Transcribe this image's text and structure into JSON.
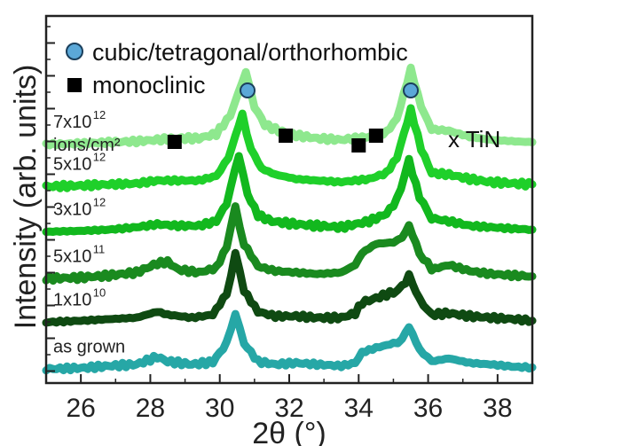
{
  "chart_data": {
    "type": "line",
    "xlabel": "2θ (°)",
    "ylabel": "Intensity (arb. units)",
    "xlim": [
      25,
      39
    ],
    "x_ticks": [
      "26",
      "28",
      "30",
      "32",
      "34",
      "36",
      "38"
    ],
    "x_tick_values": [
      26,
      28,
      30,
      32,
      34,
      36,
      38
    ],
    "y_ticks_labeled": false,
    "legend": [
      {
        "marker": "circle",
        "color": "#5ba8d8",
        "label": "cubic/tetragonal/orthorhombic"
      },
      {
        "marker": "square",
        "color": "#000000",
        "label": "monoclinic"
      }
    ],
    "tin_label": "x TiN",
    "series": [
      {
        "name": "as grown",
        "color": "#26a7a6",
        "offset": 0.0,
        "points": [
          [
            25,
            0.35
          ],
          [
            26,
            0.38
          ],
          [
            26.8,
            0.45
          ],
          [
            27.6,
            0.5
          ],
          [
            28.2,
            0.75
          ],
          [
            28.5,
            0.6
          ],
          [
            29.2,
            0.5
          ],
          [
            29.8,
            0.58
          ],
          [
            30.2,
            1.2
          ],
          [
            30.45,
            2.2
          ],
          [
            30.7,
            1.2
          ],
          [
            31.1,
            0.6
          ],
          [
            31.6,
            0.5
          ],
          [
            32.2,
            0.55
          ],
          [
            32.8,
            0.5
          ],
          [
            33.5,
            0.45
          ],
          [
            33.9,
            0.55
          ],
          [
            34.1,
            0.9
          ],
          [
            34.5,
            1.05
          ],
          [
            35.0,
            1.2
          ],
          [
            35.25,
            1.35
          ],
          [
            35.45,
            1.75
          ],
          [
            35.75,
            1.0
          ],
          [
            36.1,
            0.6
          ],
          [
            36.6,
            0.7
          ],
          [
            37.2,
            0.55
          ],
          [
            37.8,
            0.5
          ],
          [
            38.5,
            0.42
          ],
          [
            39,
            0.4
          ]
        ]
      },
      {
        "name": "1x10",
        "name_exponent": "10",
        "color": "#0f4a12",
        "offset": 1.55,
        "points": [
          [
            25,
            0.35
          ],
          [
            26,
            0.4
          ],
          [
            26.8,
            0.45
          ],
          [
            27.6,
            0.5
          ],
          [
            28.2,
            0.7
          ],
          [
            28.5,
            0.6
          ],
          [
            29.2,
            0.5
          ],
          [
            29.8,
            0.6
          ],
          [
            30.2,
            1.3
          ],
          [
            30.45,
            2.6
          ],
          [
            30.7,
            1.4
          ],
          [
            31.1,
            0.7
          ],
          [
            31.6,
            0.55
          ],
          [
            32.2,
            0.55
          ],
          [
            32.8,
            0.5
          ],
          [
            33.5,
            0.5
          ],
          [
            33.9,
            0.65
          ],
          [
            34.1,
            1.0
          ],
          [
            34.5,
            1.15
          ],
          [
            35.0,
            1.35
          ],
          [
            35.25,
            1.5
          ],
          [
            35.45,
            1.9
          ],
          [
            35.75,
            1.1
          ],
          [
            36.1,
            0.6
          ],
          [
            36.6,
            0.65
          ],
          [
            37.2,
            0.55
          ],
          [
            37.8,
            0.5
          ],
          [
            38.5,
            0.45
          ],
          [
            39,
            0.4
          ]
        ]
      },
      {
        "name": "5x10",
        "name_exponent": "11",
        "color": "#1a8a1f",
        "offset": 3.0,
        "points": [
          [
            25,
            0.35
          ],
          [
            26,
            0.38
          ],
          [
            26.8,
            0.45
          ],
          [
            27.6,
            0.55
          ],
          [
            28.2,
            0.85
          ],
          [
            28.5,
            0.9
          ],
          [
            28.8,
            0.65
          ],
          [
            29.4,
            0.55
          ],
          [
            29.9,
            0.7
          ],
          [
            30.2,
            1.4
          ],
          [
            30.45,
            2.7
          ],
          [
            30.7,
            1.5
          ],
          [
            31.1,
            0.75
          ],
          [
            31.6,
            0.6
          ],
          [
            32.2,
            0.55
          ],
          [
            32.8,
            0.5
          ],
          [
            33.5,
            0.55
          ],
          [
            33.9,
            0.8
          ],
          [
            34.1,
            1.2
          ],
          [
            34.5,
            1.5
          ],
          [
            35.0,
            1.55
          ],
          [
            35.25,
            1.7
          ],
          [
            35.45,
            2.1
          ],
          [
            35.75,
            1.2
          ],
          [
            36.1,
            0.65
          ],
          [
            36.6,
            0.8
          ],
          [
            37.2,
            0.6
          ],
          [
            37.8,
            0.5
          ],
          [
            38.5,
            0.45
          ],
          [
            39,
            0.42
          ]
        ]
      },
      {
        "name": "3x10",
        "name_exponent": "12",
        "color": "#12b81e",
        "offset": 4.55,
        "points": [
          [
            25,
            0.35
          ],
          [
            26,
            0.38
          ],
          [
            26.8,
            0.42
          ],
          [
            27.6,
            0.5
          ],
          [
            28.2,
            0.6
          ],
          [
            28.8,
            0.55
          ],
          [
            29.4,
            0.55
          ],
          [
            29.9,
            0.7
          ],
          [
            30.2,
            1.3
          ],
          [
            30.55,
            2.9
          ],
          [
            30.8,
            1.6
          ],
          [
            31.1,
            0.9
          ],
          [
            31.5,
            0.7
          ],
          [
            32.2,
            0.6
          ],
          [
            32.8,
            0.55
          ],
          [
            33.5,
            0.5
          ],
          [
            33.9,
            0.6
          ],
          [
            34.3,
            0.7
          ],
          [
            34.8,
            0.95
          ],
          [
            35.1,
            1.4
          ],
          [
            35.45,
            2.7
          ],
          [
            35.75,
            1.5
          ],
          [
            36.1,
            0.8
          ],
          [
            36.6,
            0.7
          ],
          [
            37.2,
            0.55
          ],
          [
            37.8,
            0.5
          ],
          [
            38.5,
            0.45
          ],
          [
            39,
            0.42
          ]
        ]
      },
      {
        "name": "5x10",
        "name_exponent": "12",
        "color": "#1fd02a",
        "offset": 6.05,
        "points": [
          [
            25,
            0.35
          ],
          [
            26,
            0.38
          ],
          [
            26.8,
            0.42
          ],
          [
            27.6,
            0.45
          ],
          [
            28.2,
            0.55
          ],
          [
            28.8,
            0.55
          ],
          [
            29.4,
            0.55
          ],
          [
            29.9,
            0.7
          ],
          [
            30.25,
            1.3
          ],
          [
            30.65,
            2.75
          ],
          [
            30.9,
            1.6
          ],
          [
            31.2,
            0.95
          ],
          [
            31.6,
            0.75
          ],
          [
            32.2,
            0.6
          ],
          [
            32.8,
            0.55
          ],
          [
            33.5,
            0.5
          ],
          [
            33.9,
            0.55
          ],
          [
            34.3,
            0.6
          ],
          [
            34.8,
            0.8
          ],
          [
            35.1,
            1.3
          ],
          [
            35.5,
            2.9
          ],
          [
            35.8,
            1.6
          ],
          [
            36.1,
            0.8
          ],
          [
            36.6,
            0.75
          ],
          [
            37.2,
            0.6
          ],
          [
            37.8,
            0.5
          ],
          [
            38.5,
            0.45
          ],
          [
            39,
            0.42
          ]
        ]
      },
      {
        "name": "7x10",
        "name_exponent": "12",
        "name_line2": "ions/cm²",
        "color": "#8ee88e",
        "offset": 7.45,
        "points": [
          [
            25,
            0.35
          ],
          [
            26,
            0.38
          ],
          [
            26.8,
            0.42
          ],
          [
            27.6,
            0.45
          ],
          [
            28.2,
            0.5
          ],
          [
            28.8,
            0.55
          ],
          [
            29.4,
            0.55
          ],
          [
            29.9,
            0.7
          ],
          [
            30.3,
            1.3
          ],
          [
            30.75,
            2.75
          ],
          [
            31.0,
            1.6
          ],
          [
            31.3,
            1.0
          ],
          [
            31.7,
            0.8
          ],
          [
            32.2,
            0.65
          ],
          [
            32.8,
            0.55
          ],
          [
            33.5,
            0.5
          ],
          [
            33.9,
            0.55
          ],
          [
            34.3,
            0.6
          ],
          [
            34.8,
            0.75
          ],
          [
            35.1,
            1.2
          ],
          [
            35.5,
            2.85
          ],
          [
            35.8,
            1.6
          ],
          [
            36.1,
            0.85
          ],
          [
            36.6,
            0.8
          ],
          [
            37.2,
            0.6
          ],
          [
            37.8,
            0.5
          ],
          [
            38.5,
            0.45
          ],
          [
            39,
            0.42
          ]
        ]
      }
    ],
    "markers": [
      {
        "type": "circle",
        "x": 30.8
      },
      {
        "type": "circle",
        "x": 35.5
      },
      {
        "type": "square",
        "x": 28.7
      },
      {
        "type": "square",
        "x": 31.9
      },
      {
        "type": "square",
        "x": 34.0
      },
      {
        "type": "square",
        "x": 34.5
      }
    ]
  }
}
